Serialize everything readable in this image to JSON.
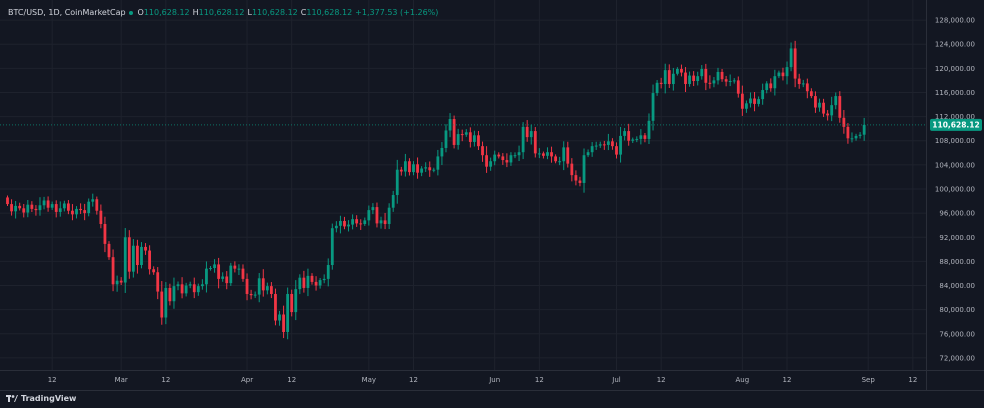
{
  "legend": {
    "symbol": "BTC/USD, 1D, CoinMarketCap",
    "o_label": "O",
    "o_value": "110,628.12",
    "h_label": "H",
    "h_value": "110,628.12",
    "l_label": "L",
    "l_value": "110,628.12",
    "c_label": "C",
    "c_value": "110,628.12",
    "change": "+1,377.53 (+1.26%)"
  },
  "brand": {
    "name": "TradingView"
  },
  "colors": {
    "up": "#089981",
    "down": "#f23645",
    "background": "#131722",
    "grid": "#1e222d",
    "text": "#b2b5be"
  },
  "chart_data": {
    "type": "candlestick",
    "symbol": "BTC/USD",
    "interval": "1D",
    "source": "CoinMarketCap",
    "ylim": [
      70000,
      130000
    ],
    "y_ticks": [
      72000,
      76000,
      80000,
      84000,
      88000,
      92000,
      96000,
      100000,
      104000,
      108000,
      112000,
      116000,
      120000,
      124000,
      128000
    ],
    "y_tick_labels": [
      "72,000.00",
      "76,000.00",
      "80,000.00",
      "84,000.00",
      "88,000.00",
      "92,000.00",
      "96,000.00",
      "100,000.00",
      "104,000.00",
      "108,000.00",
      "112,000.00",
      "116,000.00",
      "120,000.00",
      "124,000.00",
      "128,000.00"
    ],
    "start_date": "2025-02-01",
    "end_date": "2025-09-01",
    "x_ticks": [
      {
        "date": "2025-02-12",
        "label": "12"
      },
      {
        "date": "2025-03-01",
        "label": "Mar"
      },
      {
        "date": "2025-03-12",
        "label": "12"
      },
      {
        "date": "2025-04-01",
        "label": "Apr"
      },
      {
        "date": "2025-04-12",
        "label": "12"
      },
      {
        "date": "2025-05-01",
        "label": "May"
      },
      {
        "date": "2025-05-12",
        "label": "12"
      },
      {
        "date": "2025-06-01",
        "label": "Jun"
      },
      {
        "date": "2025-06-12",
        "label": "12"
      },
      {
        "date": "2025-07-01",
        "label": "Jul"
      },
      {
        "date": "2025-07-12",
        "label": "12"
      },
      {
        "date": "2025-08-01",
        "label": "Aug"
      },
      {
        "date": "2025-08-12",
        "label": "12"
      },
      {
        "date": "2025-09-01",
        "label": "Sep"
      },
      {
        "date": "2025-09-12",
        "label": "12"
      }
    ],
    "closes": [
      97500,
      96300,
      97200,
      96800,
      96100,
      97400,
      96700,
      96500,
      97300,
      98100,
      96900,
      97500,
      96200,
      96800,
      97600,
      96400,
      95800,
      96700,
      96500,
      96000,
      97900,
      98300,
      96400,
      94200,
      90900,
      88700,
      84200,
      84800,
      84500,
      92000,
      86300,
      90600,
      87400,
      90400,
      89800,
      86700,
      86200,
      83000,
      78700,
      83600,
      81400,
      83900,
      84200,
      82700,
      84000,
      84200,
      82900,
      83900,
      84200,
      86800,
      86900,
      87500,
      85100,
      85500,
      84400,
      87300,
      86800,
      86800,
      85100,
      82600,
      82400,
      82500,
      85200,
      83200,
      83900,
      82600,
      78200,
      79200,
      76300,
      82600,
      79600,
      83400,
      85300,
      83600,
      85600,
      84600,
      84000,
      84900,
      85100,
      87400,
      93500,
      93900,
      94700,
      93800,
      94100,
      95000,
      94300,
      94200,
      94800,
      96500,
      97000,
      94300,
      94800,
      94200,
      96900,
      99000,
      103200,
      102900,
      104600,
      102800,
      104100,
      102700,
      103400,
      103600,
      103100,
      103200,
      105400,
      106800,
      109700,
      111600,
      107300,
      109100,
      109000,
      109400,
      107800,
      108900,
      107100,
      105600,
      103700,
      104600,
      105700,
      105400,
      104800,
      104400,
      105600,
      105600,
      106100,
      110300,
      108600,
      109600,
      105900,
      105900,
      105500,
      106100,
      105400,
      104600,
      104600,
      106900,
      104200,
      102300,
      101400,
      101000,
      105600,
      106100,
      107100,
      107200,
      107400,
      107300,
      107900,
      107100,
      105700,
      108800,
      109600,
      108000,
      108200,
      108300,
      108900,
      108300,
      111300,
      115900,
      117600,
      117400,
      119700,
      117400,
      119100,
      119900,
      119300,
      117400,
      118800,
      117900,
      118700,
      119900,
      117600,
      117500,
      118000,
      119400,
      118200,
      117800,
      117900,
      118000,
      115800,
      113300,
      114200,
      115000,
      114100,
      114900,
      116400,
      117500,
      116700,
      118700,
      119300,
      118700,
      120200,
      123300,
      118300,
      117400,
      117500,
      116200,
      115400,
      113500,
      114300,
      112500,
      112200,
      113900,
      115400,
      111800,
      110300,
      108400,
      108400,
      108800,
      109000,
      110628
    ]
  }
}
